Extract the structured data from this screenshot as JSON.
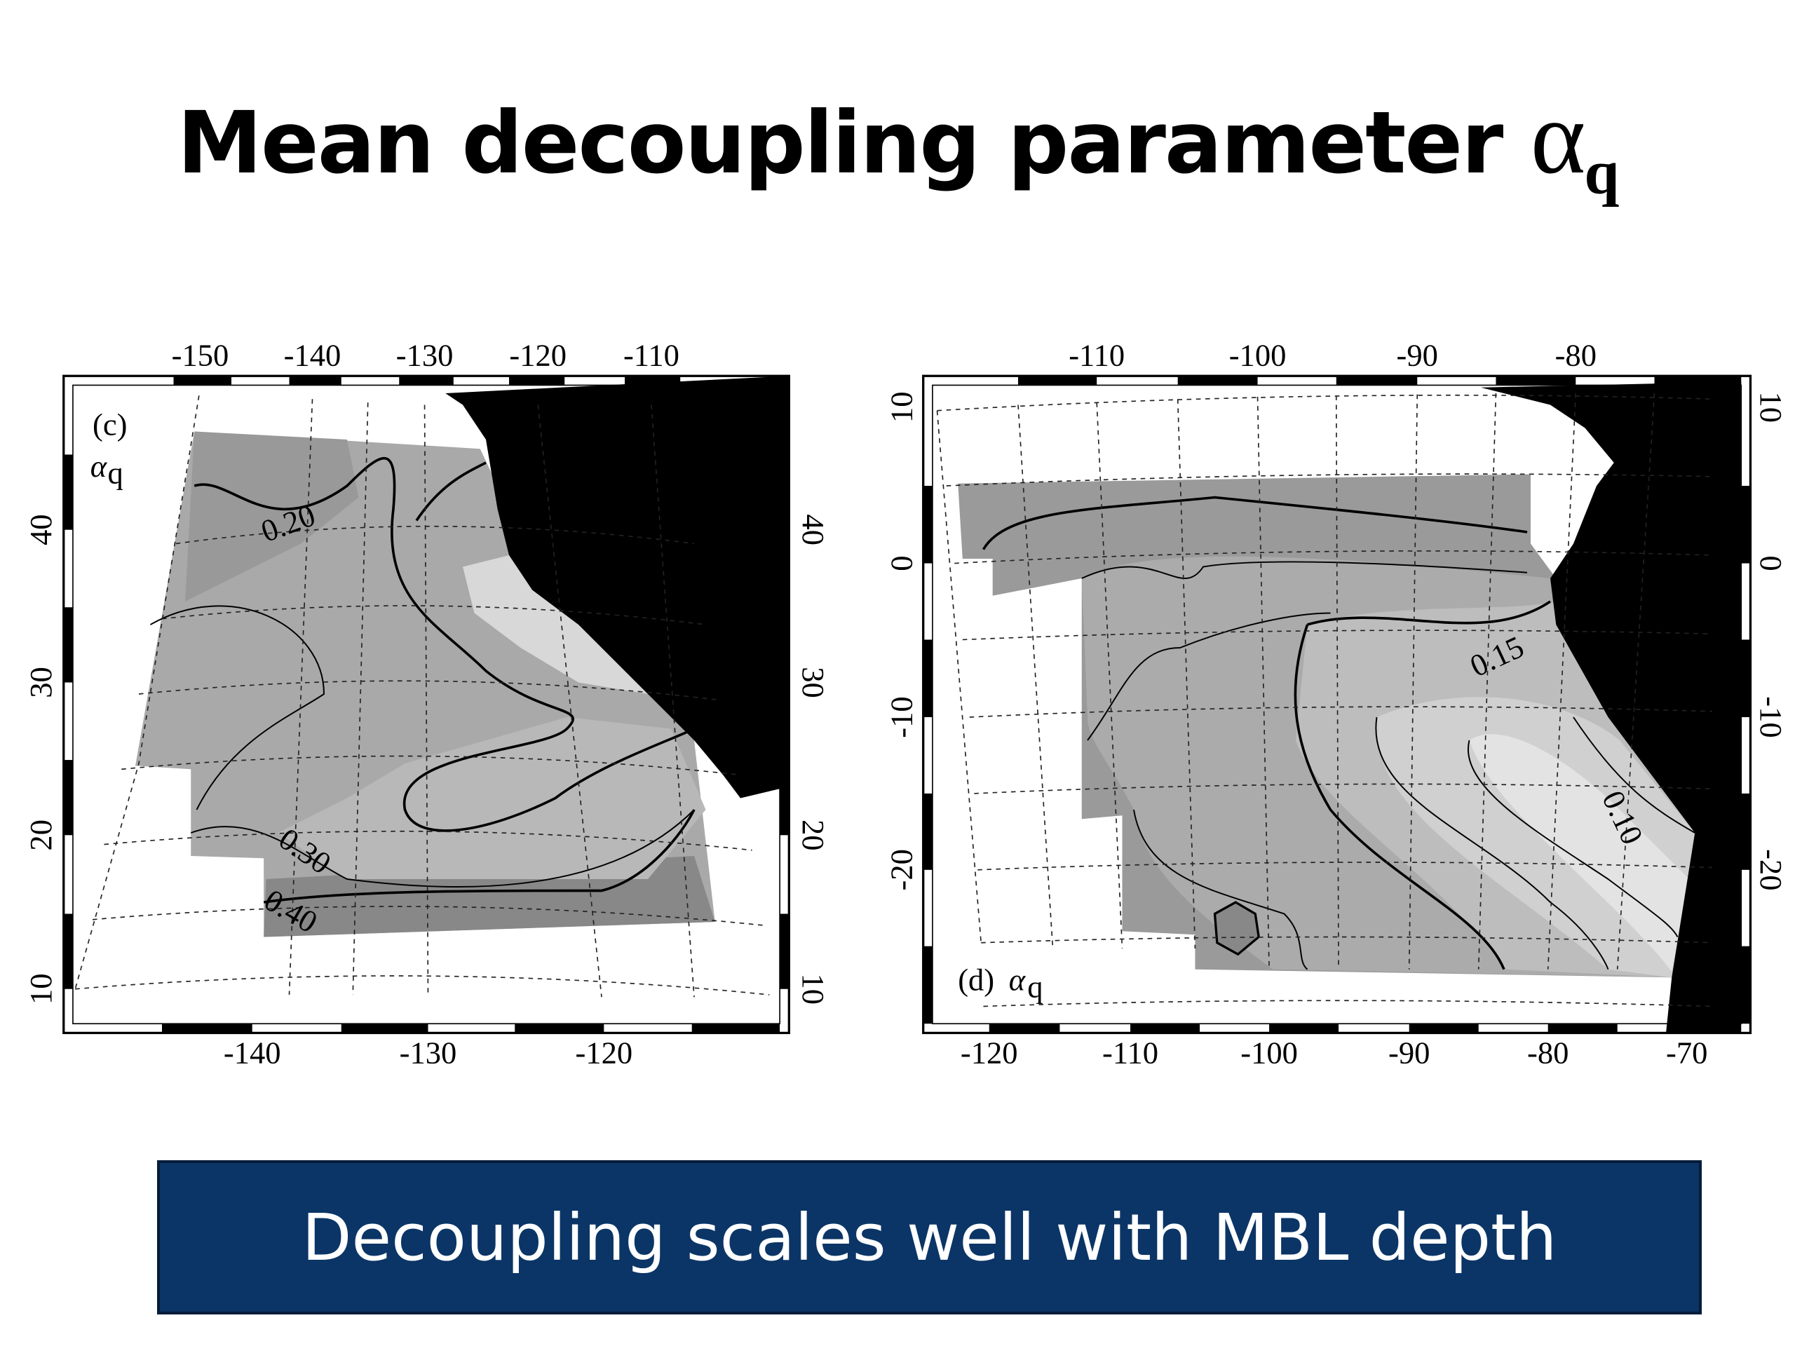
{
  "title": {
    "text": "Mean decoupling parameter",
    "symbol": "α",
    "subscript": "q"
  },
  "maps": [
    {
      "panel": "(c)",
      "symbol": "α",
      "subscript": "q",
      "top_ticks": [
        "-150",
        "-140",
        "-130",
        "-120",
        "-110"
      ],
      "bottom_ticks": [
        "-140",
        "-130",
        "-120"
      ],
      "left_ticks": [
        "40",
        "30",
        "20",
        "10"
      ],
      "right_ticks": [
        "40",
        "30",
        "20",
        "10"
      ],
      "contour_labels": [
        "0.20",
        "0.30",
        "0.40"
      ]
    },
    {
      "panel": "(d)",
      "symbol": "α",
      "subscript": "q",
      "top_ticks": [
        "-110",
        "-100",
        "-90",
        "-80"
      ],
      "bottom_ticks": [
        "-120",
        "-110",
        "-100",
        "-90",
        "-80",
        "-70"
      ],
      "left_ticks": [
        "10",
        "0",
        "-10",
        "-20"
      ],
      "right_ticks": [
        "10",
        "0",
        "-10",
        "-20"
      ],
      "contour_labels": [
        "0.15",
        "0.10"
      ]
    }
  ],
  "banner": {
    "text": "Decoupling scales well with MBL depth"
  }
}
